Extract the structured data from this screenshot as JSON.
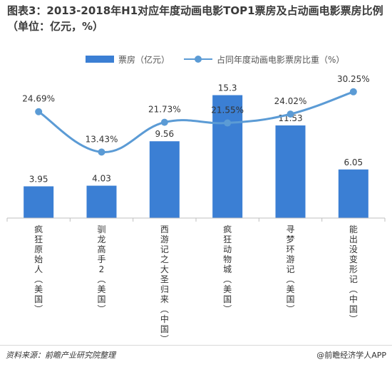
{
  "title": "图表3：2013-2018年H1对应年度动画电影TOP1票房及占动画电影票房比例（单位：亿元，%）",
  "legend": {
    "bar_label": "票房（亿元）",
    "line_label": "占同年度动画电影票房比重（%）"
  },
  "footer": {
    "source": "资料来源：前瞻产业研究院整理",
    "brand": "@前瞻经济学人APP"
  },
  "colors": {
    "bar": "#3b7fd4",
    "line": "#5b9bd5"
  },
  "chart_data": {
    "type": "bar",
    "categories": [
      "疯狂原始人（美国）",
      "驯龙高手2（美国）",
      "西游记之大圣归来（中国）",
      "疯狂动物城（美国）",
      "寻梦环游记（美国）",
      "能出没变形记（中国）"
    ],
    "series": [
      {
        "name": "票房（亿元）",
        "type": "bar",
        "values": [
          3.95,
          4.03,
          9.56,
          15.3,
          11.53,
          6.05
        ],
        "labels": [
          "3.95",
          "4.03",
          "9.56",
          "15.3",
          "11.53",
          "6.05"
        ]
      },
      {
        "name": "占同年度动画电影票房比重（%）",
        "type": "line",
        "values": [
          24.69,
          13.43,
          21.73,
          21.55,
          24.02,
          30.25
        ],
        "labels": [
          "24.69%",
          "13.43%",
          "21.73%",
          "21.55%",
          "24.02%",
          "30.25%"
        ]
      }
    ],
    "bar_axis_range": [
      0,
      16.5
    ],
    "line_axis_range": [
      -5,
      32
    ],
    "grid": false,
    "legend_position": "top"
  }
}
